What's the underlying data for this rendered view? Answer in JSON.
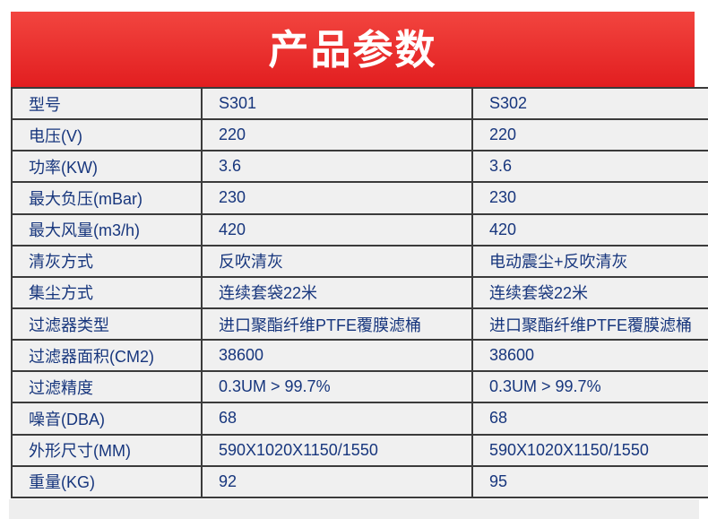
{
  "header": {
    "title": "产品参数"
  },
  "colors": {
    "banner-top": "#f2453f",
    "banner-bottom": "#e21e20",
    "cell-bg": "#f0f0f0",
    "border": "#3b3b3b",
    "text": "#17367d",
    "page-bg": "#ffffff",
    "strip": "#eeeeee"
  },
  "table": {
    "rows": [
      {
        "label": "型号",
        "col1": "S301",
        "col2": "S302"
      },
      {
        "label": "电压(V)",
        "col1": "220",
        "col2": "220"
      },
      {
        "label": "功率(KW)",
        "col1": "3.6",
        "col2": "3.6"
      },
      {
        "label": "最大负压(mBar)",
        "col1": "230",
        "col2": "230"
      },
      {
        "label": "最大风量(m3/h)",
        "col1": "420",
        "col2": "420"
      },
      {
        "label": "清灰方式",
        "col1": "反吹清灰",
        "col2": "电动震尘+反吹清灰"
      },
      {
        "label": "集尘方式",
        "col1": "连续套袋22米",
        "col2": "连续套袋22米"
      },
      {
        "label": "过滤器类型",
        "col1": "进口聚酯纤维PTFE覆膜滤桶",
        "col2": "进口聚酯纤维PTFE覆膜滤桶"
      },
      {
        "label": "过滤器面积(CM2)",
        "col1": "38600",
        "col2": "38600"
      },
      {
        "label": "过滤精度",
        "col1": "0.3UM > 99.7%",
        "col2": "0.3UM > 99.7%"
      },
      {
        "label": "噪音(DBA)",
        "col1": "68",
        "col2": "68"
      },
      {
        "label": "外形尺寸(MM)",
        "col1": "590X1020X1150/1550",
        "col2": "590X1020X1150/1550"
      },
      {
        "label": "重量(KG)",
        "col1": "92",
        "col2": "95"
      }
    ]
  }
}
